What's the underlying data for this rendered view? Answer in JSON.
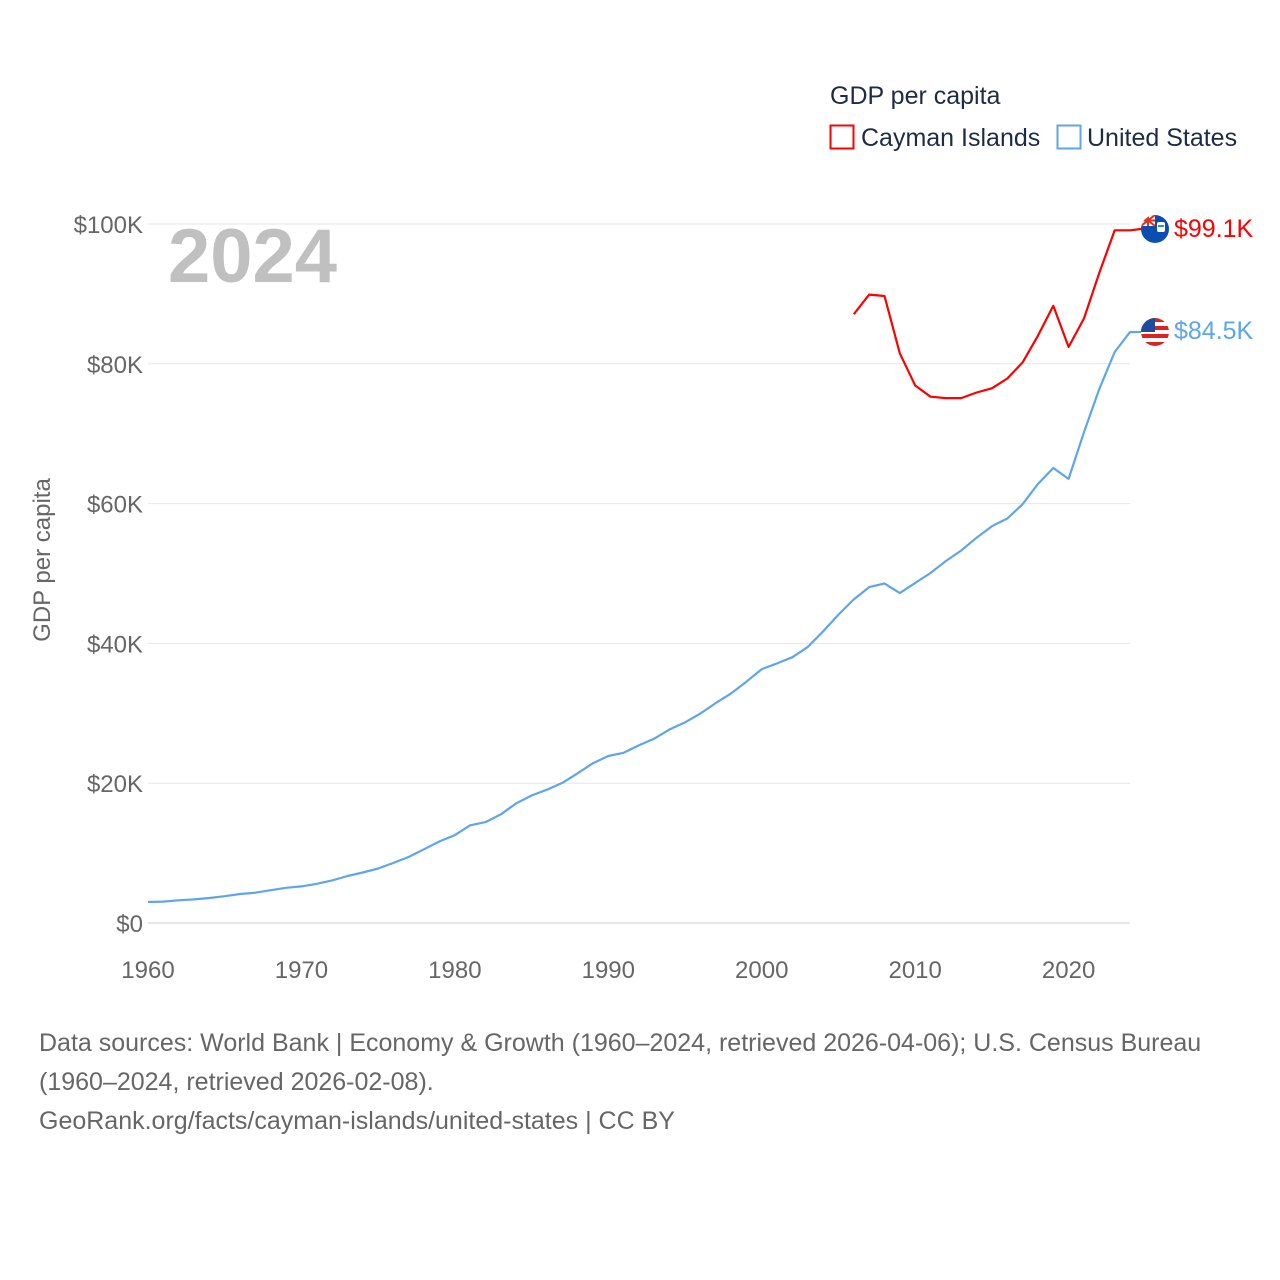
{
  "chart_data": {
    "type": "line",
    "title": "GDP per capita",
    "ylabel": "GDP per capita",
    "xlabel": "",
    "year_label": "2024",
    "xlim": [
      1960,
      2024
    ],
    "ylim": [
      0,
      100000
    ],
    "x_ticks": [
      1960,
      1970,
      1980,
      1990,
      2000,
      2010,
      2020
    ],
    "x_tick_labels": [
      "1960",
      "1970",
      "1980",
      "1990",
      "2000",
      "2010",
      "2020"
    ],
    "y_ticks": [
      0,
      20000,
      40000,
      60000,
      80000,
      100000
    ],
    "y_tick_labels": [
      "$0",
      "$20K",
      "$40K",
      "$60K",
      "$80K",
      "$100K"
    ],
    "grid": true,
    "legend_position": "top-right",
    "series": [
      {
        "name": "Cayman Islands",
        "color": "#ff0000",
        "end_label": "$99.1K",
        "flag_icon": "cayman-islands-flag-icon",
        "x": [
          2006,
          2007,
          2008,
          2009,
          2010,
          2011,
          2012,
          2013,
          2014,
          2015,
          2016,
          2017,
          2018,
          2019,
          2020,
          2021,
          2022,
          2023,
          2024
        ],
        "values": [
          87100,
          89900,
          89700,
          81500,
          76900,
          75300,
          75100,
          75100,
          75900,
          76500,
          77900,
          80200,
          84000,
          88300,
          82400,
          86500,
          93000,
          99100,
          99100
        ]
      },
      {
        "name": "United States",
        "color": "#5ea5ec",
        "end_label": "$84.5K",
        "flag_icon": "united-states-flag-icon",
        "x": [
          1960,
          1961,
          1962,
          1963,
          1964,
          1965,
          1966,
          1967,
          1968,
          1969,
          1970,
          1971,
          1972,
          1973,
          1974,
          1975,
          1976,
          1977,
          1978,
          1979,
          1980,
          1981,
          1982,
          1983,
          1984,
          1985,
          1986,
          1987,
          1988,
          1989,
          1990,
          1991,
          1992,
          1993,
          1994,
          1995,
          1996,
          1997,
          1998,
          1999,
          2000,
          2001,
          2002,
          2003,
          2004,
          2005,
          2006,
          2007,
          2008,
          2009,
          2010,
          2011,
          2012,
          2013,
          2014,
          2015,
          2016,
          2017,
          2018,
          2019,
          2020,
          2021,
          2022,
          2023,
          2024
        ],
        "values": [
          3007,
          3067,
          3244,
          3375,
          3574,
          3828,
          4146,
          4336,
          4696,
          5032,
          5234,
          5609,
          6094,
          6726,
          7226,
          7801,
          8592,
          9453,
          10565,
          11674,
          12575,
          13976,
          14434,
          15544,
          17121,
          18237,
          19071,
          20039,
          21417,
          22857,
          23889,
          24342,
          25419,
          26387,
          27695,
          28691,
          29968,
          31459,
          32854,
          34515,
          36330,
          37134,
          38023,
          39496,
          41713,
          44115,
          46299,
          48050,
          48570,
          47195,
          48651,
          50066,
          51784,
          53291,
          55124,
          56763,
          57867,
          59915,
          62805,
          65095,
          63528,
          70219,
          76399,
          81695,
          84534
        ]
      }
    ]
  },
  "footer": {
    "sources": "Data sources: World Bank | Economy & Growth (1960–2024, retrieved 2026-04-06); U.S. Census Bureau (1960–2024, retrieved 2026-02-08).",
    "attribution": "GeoRank.org/facts/cayman-islands/united-states | CC BY"
  }
}
